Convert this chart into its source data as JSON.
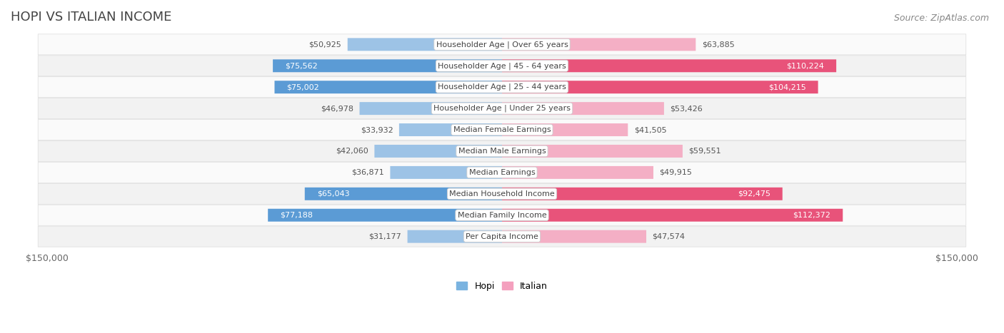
{
  "title": "HOPI VS ITALIAN INCOME",
  "source": "Source: ZipAtlas.com",
  "categories": [
    "Per Capita Income",
    "Median Family Income",
    "Median Household Income",
    "Median Earnings",
    "Median Male Earnings",
    "Median Female Earnings",
    "Householder Age | Under 25 years",
    "Householder Age | 25 - 44 years",
    "Householder Age | 45 - 64 years",
    "Householder Age | Over 65 years"
  ],
  "hopi_values": [
    31177,
    77188,
    65043,
    36871,
    42060,
    33932,
    46978,
    75002,
    75562,
    50925
  ],
  "italian_values": [
    47574,
    112372,
    92475,
    49915,
    59551,
    41505,
    53426,
    104215,
    110224,
    63885
  ],
  "hopi_labels": [
    "$31,177",
    "$77,188",
    "$65,043",
    "$36,871",
    "$42,060",
    "$33,932",
    "$46,978",
    "$75,002",
    "$75,562",
    "$50,925"
  ],
  "italian_labels": [
    "$47,574",
    "$112,372",
    "$92,475",
    "$49,915",
    "$59,551",
    "$41,505",
    "$53,426",
    "$104,215",
    "$110,224",
    "$63,885"
  ],
  "max_value": 150000,
  "hopi_color_dark": "#5b9bd5",
  "hopi_color_light": "#9dc3e6",
  "italian_color_dark": "#e8537a",
  "italian_color_light": "#f4afc5",
  "legend_hopi_color": "#7ab3e0",
  "legend_italian_color": "#f4a0be",
  "bg_color": "#ffffff",
  "row_bg_light": "#f2f2f2",
  "row_bg_white": "#fafafa",
  "title_fontsize": 13,
  "source_fontsize": 9,
  "label_fontsize": 8,
  "category_fontsize": 8,
  "tick_label": "$150,000",
  "bar_height": 0.6,
  "hopi_threshold": 60000,
  "italian_threshold": 70000
}
